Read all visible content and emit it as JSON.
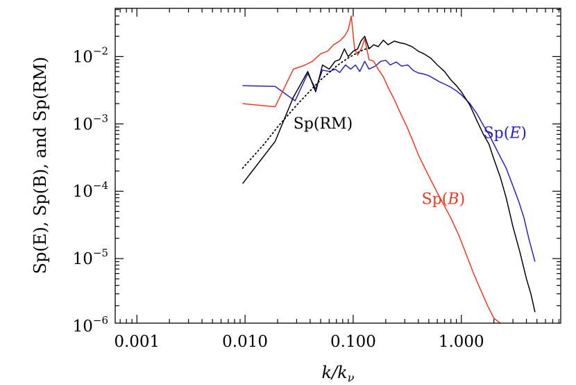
{
  "chart_data": {
    "type": "line",
    "x_scale": "log",
    "y_scale": "log",
    "xlim": [
      0.00063,
      8.3
    ],
    "ylim": [
      1.1e-06,
      0.052
    ],
    "x_ticks": [
      0.001,
      0.01,
      0.1,
      1.0
    ],
    "x_tick_labels": [
      "0.001",
      "0.010",
      "0.100",
      "1.000"
    ],
    "y_ticks": [
      1e-06,
      1e-05,
      0.0001,
      0.001,
      0.01
    ],
    "y_tick_labels": [
      {
        "base": "10",
        "exp": "−6"
      },
      {
        "base": "10",
        "exp": "−5"
      },
      {
        "base": "10",
        "exp": "−4"
      },
      {
        "base": "10",
        "exp": "−3"
      },
      {
        "base": "10",
        "exp": "−2"
      }
    ],
    "xlabel": {
      "pre": "",
      "italic": "k/k",
      "sub": "ν"
    },
    "ylabel": "Sp(E), Sp(B), and Sp(RM)",
    "grid": false,
    "legend": "none",
    "series": [
      {
        "name": "Sp(E)",
        "color": "#2a1fbf",
        "style": "solid",
        "x": [
          0.0095,
          0.019,
          0.029,
          0.038,
          0.045,
          0.052,
          0.06,
          0.068,
          0.075,
          0.085,
          0.095,
          0.105,
          0.115,
          0.128,
          0.14,
          0.16,
          0.18,
          0.2,
          0.22,
          0.25,
          0.28,
          0.32,
          0.36,
          0.4,
          0.45,
          0.5,
          0.56,
          0.63,
          0.7,
          0.8,
          0.9,
          1.0,
          1.2,
          1.4,
          1.6,
          1.8,
          2.0,
          2.3,
          2.6,
          3.0,
          3.4,
          3.8,
          4.2,
          4.8
        ],
        "y": [
          0.0037,
          0.0036,
          0.0022,
          0.0056,
          0.0033,
          0.0063,
          0.006,
          0.0065,
          0.0058,
          0.0075,
          0.0065,
          0.0075,
          0.006,
          0.0085,
          0.0065,
          0.0072,
          0.0085,
          0.0088,
          0.0075,
          0.0083,
          0.0072,
          0.0075,
          0.0062,
          0.0057,
          0.0055,
          0.0052,
          0.0047,
          0.0042,
          0.0039,
          0.0035,
          0.0031,
          0.0027,
          0.002,
          0.0014,
          0.00095,
          0.0007,
          0.0005,
          0.00032,
          0.00022,
          0.00012,
          7e-05,
          4e-05,
          2e-05,
          9e-06
        ]
      },
      {
        "name": "Sp(B)",
        "color": "#f0391c",
        "style": "solid",
        "x": [
          0.0095,
          0.019,
          0.028,
          0.036,
          0.042,
          0.05,
          0.058,
          0.066,
          0.075,
          0.083,
          0.09,
          0.096,
          0.103,
          0.11,
          0.12,
          0.128,
          0.14,
          0.155,
          0.17,
          0.19,
          0.21,
          0.24,
          0.27,
          0.31,
          0.35,
          0.4,
          0.46,
          0.53,
          0.6,
          0.7,
          0.8,
          0.95,
          1.1,
          1.3,
          1.5,
          1.75,
          2.0,
          2.3,
          2.6,
          2.9
        ],
        "y": [
          0.002,
          0.0018,
          0.0065,
          0.0075,
          0.0085,
          0.011,
          0.012,
          0.015,
          0.017,
          0.02,
          0.025,
          0.04,
          0.013,
          0.0105,
          0.0135,
          0.0185,
          0.009,
          0.0085,
          0.0065,
          0.005,
          0.0035,
          0.0023,
          0.0015,
          0.00095,
          0.0006,
          0.00035,
          0.00022,
          0.00014,
          9.5e-05,
          6e-05,
          4e-05,
          2.2e-05,
          1.2e-05,
          6e-06,
          3.5e-06,
          2e-06,
          1.3e-06,
          1.1e-06,
          1.05e-06,
          1e-06
        ]
      },
      {
        "name": "Sp(RM)",
        "color": "#000000",
        "style": "solid",
        "x": [
          0.0095,
          0.019,
          0.028,
          0.038,
          0.045,
          0.052,
          0.06,
          0.068,
          0.075,
          0.083,
          0.09,
          0.1,
          0.11,
          0.118,
          0.128,
          0.14,
          0.155,
          0.17,
          0.19,
          0.21,
          0.24,
          0.27,
          0.3,
          0.35,
          0.4,
          0.45,
          0.52,
          0.6,
          0.7,
          0.8,
          0.9,
          1.0,
          1.2,
          1.4,
          1.6,
          1.8,
          2.0,
          2.3,
          2.6,
          3.0,
          3.5,
          4.0,
          4.4,
          4.8
        ],
        "y": [
          0.00013,
          0.00055,
          0.0025,
          0.006,
          0.003,
          0.0075,
          0.0065,
          0.0085,
          0.009,
          0.013,
          0.01,
          0.012,
          0.013,
          0.017,
          0.02,
          0.013,
          0.015,
          0.014,
          0.0175,
          0.015,
          0.017,
          0.016,
          0.0155,
          0.014,
          0.012,
          0.011,
          0.0095,
          0.0075,
          0.006,
          0.0045,
          0.0037,
          0.003,
          0.0019,
          0.0011,
          0.0007,
          0.0005,
          0.0003,
          0.00016,
          8e-05,
          3e-05,
          1.2e-05,
          5e-06,
          3e-06,
          1.6e-06
        ]
      },
      {
        "name": "dotted",
        "color": "#000000",
        "style": "dotted",
        "x": [
          0.0095,
          0.015,
          0.02,
          0.03,
          0.04,
          0.05,
          0.06,
          0.07,
          0.08,
          0.09,
          0.1,
          0.12,
          0.14
        ],
        "y": [
          0.00022,
          0.0005,
          0.0009,
          0.0019,
          0.0031,
          0.0045,
          0.0058,
          0.0072,
          0.0084,
          0.0095,
          0.0105,
          0.0123,
          0.0135
        ]
      }
    ],
    "annotations": [
      {
        "series": "Sp(RM)",
        "text_pre": "Sp(",
        "text_it": "",
        "text_mid": "RM",
        "text_post": ")",
        "color": "#000000",
        "at_x": 0.028,
        "at_y": 0.00085
      },
      {
        "series": "Sp(E)",
        "text_pre": "Sp(",
        "text_it": "E",
        "text_mid": "",
        "text_post": ")",
        "color": "#2a1fbf",
        "at_x": 1.6,
        "at_y": 0.00062
      },
      {
        "series": "Sp(B)",
        "text_pre": "Sp(",
        "text_it": "B",
        "text_mid": "",
        "text_post": ")",
        "color": "#f0391c",
        "at_x": 0.43,
        "at_y": 6.5e-05
      }
    ]
  }
}
